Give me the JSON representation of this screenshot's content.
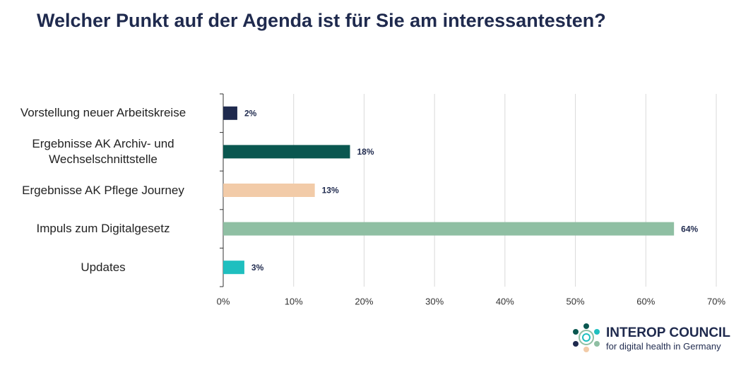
{
  "chart_data": {
    "type": "hbar",
    "title": "Welcher Punkt auf der Agenda ist für Sie am interessantesten?",
    "categories": [
      "Vorstellung neuer Arbeitskreise",
      "Ergebnisse AK Archiv- und\nWechselschnittstelle",
      "Ergebnisse AK Pflege Journey",
      "Impuls zum Digitalgesetz",
      "Updates"
    ],
    "values": [
      2,
      18,
      13,
      64,
      3
    ],
    "value_labels": [
      "2%",
      "18%",
      "13%",
      "64%",
      "3%"
    ],
    "colors": [
      "#1f2a4e",
      "#0a5750",
      "#f2cba8",
      "#8fbfa3",
      "#1fbfbf"
    ],
    "xlim": [
      0,
      70
    ],
    "xticks": [
      {
        "value": 0,
        "label": "0%"
      },
      {
        "value": 10,
        "label": "10%"
      },
      {
        "value": 20,
        "label": "20%"
      },
      {
        "value": 30,
        "label": "30%"
      },
      {
        "value": 40,
        "label": "40%"
      },
      {
        "value": 50,
        "label": "50%"
      },
      {
        "value": 60,
        "label": "60%"
      },
      {
        "value": 70,
        "label": "70%"
      }
    ],
    "grid": true
  },
  "logo": {
    "name": "INTEROP COUNCIL",
    "tagline": "for digital health in Germany"
  }
}
